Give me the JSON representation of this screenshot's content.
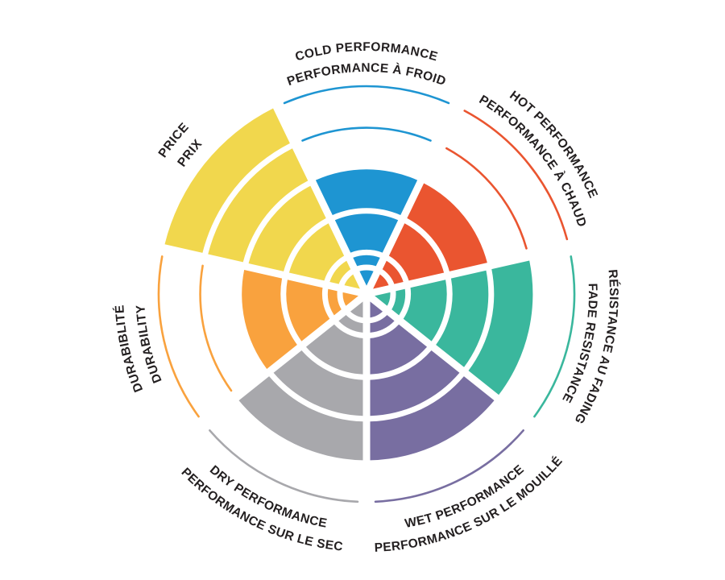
{
  "canvas": {
    "background": "#ffffff",
    "text_color": "#231f20",
    "gap_color": "#ffffff"
  },
  "chart_data": {
    "type": "radial-sector-rating",
    "title": "",
    "scale_max": 5,
    "grid": "concentric-rings-per-sector",
    "legend_position": "curved-labels-around-wheel",
    "categories": [
      {
        "id": "cold",
        "label_outer": "COLD PERFORMANCE",
        "label_inner": "PERFORMANCE À FROID",
        "value": 3,
        "color": "#1e95d2"
      },
      {
        "id": "hot",
        "label_outer": "HOT PERFORMANCE",
        "label_inner": "PERFORMANCE À CHAUD",
        "value": 3,
        "color": "#ea5530"
      },
      {
        "id": "fade",
        "label_outer": "RÉSISTANCE AU FADING",
        "label_inner": "FADE RESISTANCE",
        "value": 4,
        "color": "#3ab79d"
      },
      {
        "id": "wet",
        "label_outer": "PERFORMANCE SUR LE MOUILLÉ",
        "label_inner": "WET PERFORMANCE",
        "value": 4,
        "color": "#786ea1"
      },
      {
        "id": "dry",
        "label_outer": "PERFORMANCE SUR LE SEC",
        "label_inner": "DRY PERFORMANCE",
        "value": 4,
        "color": "#a8a8ac"
      },
      {
        "id": "durability",
        "label_outer": "DURABIBLITÉ",
        "label_inner": "DURABILITY",
        "value": 3,
        "color": "#f9a23e"
      },
      {
        "id": "price",
        "label_outer": "PRICE",
        "label_inner": "PRIX",
        "value": 5,
        "color": "#f1d74d"
      }
    ]
  }
}
